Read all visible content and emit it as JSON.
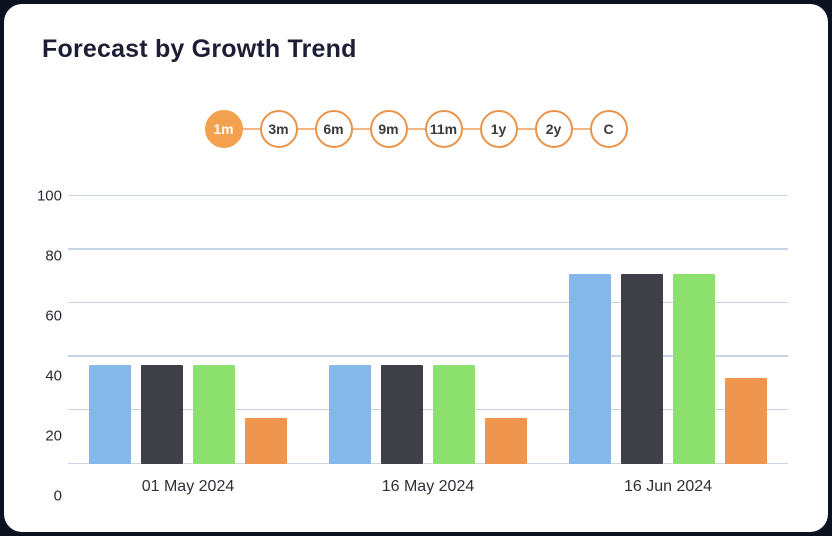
{
  "card": {
    "title": "Forecast by Growth Trend"
  },
  "range": {
    "options": [
      "1m",
      "3m",
      "6m",
      "9m",
      "11m",
      "1y",
      "2y",
      "C"
    ],
    "active": "1m",
    "active_color": "#F3A04F",
    "border_color": "#E8944A"
  },
  "chart_data": {
    "type": "bar",
    "title": "Forecast by Growth Trend",
    "categories": [
      "01 May 2024",
      "16 May 2024",
      "16 Jun 2024"
    ],
    "series": [
      {
        "name": "blue",
        "color": "#85B7E9",
        "values": [
          37,
          37,
          71
        ]
      },
      {
        "name": "dark-gray",
        "color": "#3F3F47",
        "values": [
          37,
          37,
          71
        ]
      },
      {
        "name": "green",
        "color": "#8BE06E",
        "values": [
          37,
          37,
          71
        ]
      },
      {
        "name": "orange",
        "color": "#F0954E",
        "values": [
          17,
          17,
          32
        ]
      }
    ],
    "xlabel": "",
    "ylabel": "",
    "ylim": [
      0,
      100
    ],
    "yticks": [
      0,
      20,
      40,
      60,
      80,
      100
    ],
    "grid": "horizontal",
    "legend": "none"
  }
}
